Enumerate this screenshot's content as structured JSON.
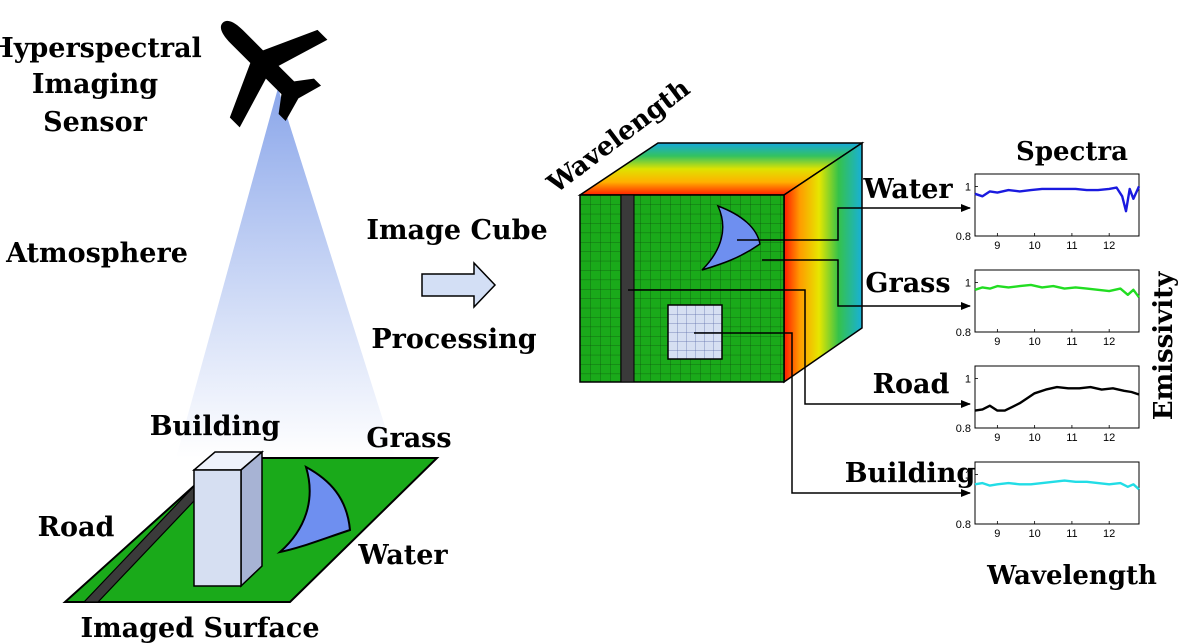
{
  "scene": {
    "sensor_label_lines": [
      "Hyperspectral",
      "Imaging",
      "Sensor"
    ],
    "atmosphere_label": "Atmosphere",
    "surface_label": "Imaged Surface",
    "building_label": "Building",
    "grass_label": "Grass",
    "road_label": "Road",
    "water_label": "Water"
  },
  "process": {
    "cube_label": "Image Cube",
    "processing_label": "Processing",
    "wavelength_axis_label": "Wavelength"
  },
  "spectra": {
    "title": "Spectra",
    "ylabel": "Emissivity",
    "xlabel": "Wavelength",
    "panel_labels": [
      "Water",
      "Grass",
      "Road",
      "Building"
    ]
  },
  "colors": {
    "grass": "#1aaa1a",
    "water": "#6e8ff0",
    "building": "#d6dff2",
    "road": "#3a3a3a",
    "beam": "#9fb6ee",
    "arrow_fill": "#d3dff5"
  },
  "chart_data": [
    {
      "type": "line",
      "title": "Water",
      "xlim": [
        8.4,
        12.8
      ],
      "ylim": [
        0.8,
        1.05
      ],
      "xticks": [
        9,
        10,
        11,
        12
      ],
      "yticks": [
        0.8,
        1
      ],
      "series": [
        {
          "name": "Water",
          "color": "#1a1adf",
          "x": [
            8.4,
            8.6,
            8.8,
            9.0,
            9.3,
            9.6,
            9.9,
            10.2,
            10.5,
            10.8,
            11.1,
            11.4,
            11.7,
            12.0,
            12.2,
            12.35,
            12.45,
            12.55,
            12.65,
            12.8
          ],
          "y": [
            0.97,
            0.96,
            0.98,
            0.975,
            0.985,
            0.98,
            0.985,
            0.99,
            0.99,
            0.99,
            0.99,
            0.985,
            0.985,
            0.99,
            0.995,
            0.96,
            0.9,
            0.99,
            0.95,
            1.0
          ]
        }
      ]
    },
    {
      "type": "line",
      "title": "Grass",
      "xlim": [
        8.4,
        12.8
      ],
      "ylim": [
        0.8,
        1.05
      ],
      "xticks": [
        9,
        10,
        11,
        12
      ],
      "yticks": [
        0.8,
        1
      ],
      "series": [
        {
          "name": "Grass",
          "color": "#22dd22",
          "x": [
            8.4,
            8.6,
            8.8,
            9.0,
            9.3,
            9.6,
            9.9,
            10.2,
            10.5,
            10.8,
            11.1,
            11.4,
            11.7,
            12.0,
            12.3,
            12.5,
            12.65,
            12.8
          ],
          "y": [
            0.97,
            0.98,
            0.975,
            0.985,
            0.98,
            0.985,
            0.99,
            0.98,
            0.985,
            0.975,
            0.98,
            0.975,
            0.97,
            0.965,
            0.975,
            0.95,
            0.97,
            0.94
          ]
        }
      ]
    },
    {
      "type": "line",
      "title": "Road",
      "xlim": [
        8.4,
        12.8
      ],
      "ylim": [
        0.8,
        1.05
      ],
      "xticks": [
        9,
        10,
        11,
        12
      ],
      "yticks": [
        0.8,
        1
      ],
      "series": [
        {
          "name": "Road",
          "color": "#000000",
          "x": [
            8.4,
            8.6,
            8.8,
            9.0,
            9.2,
            9.4,
            9.6,
            9.8,
            10.0,
            10.3,
            10.6,
            10.9,
            11.2,
            11.5,
            11.8,
            12.1,
            12.4,
            12.6,
            12.8
          ],
          "y": [
            0.87,
            0.875,
            0.89,
            0.87,
            0.87,
            0.885,
            0.9,
            0.92,
            0.94,
            0.955,
            0.965,
            0.96,
            0.96,
            0.965,
            0.955,
            0.96,
            0.95,
            0.945,
            0.935
          ]
        }
      ]
    },
    {
      "type": "line",
      "title": "Building",
      "xlim": [
        8.4,
        12.8
      ],
      "ylim": [
        0.8,
        1.05
      ],
      "xticks": [
        9,
        10,
        11,
        12
      ],
      "yticks": [
        0.8,
        1
      ],
      "series": [
        {
          "name": "Building",
          "color": "#22dde6",
          "x": [
            8.4,
            8.6,
            8.8,
            9.0,
            9.3,
            9.6,
            9.9,
            10.2,
            10.5,
            10.8,
            11.1,
            11.4,
            11.7,
            12.0,
            12.3,
            12.5,
            12.65,
            12.8
          ],
          "y": [
            0.96,
            0.965,
            0.955,
            0.96,
            0.965,
            0.96,
            0.96,
            0.965,
            0.97,
            0.975,
            0.97,
            0.97,
            0.965,
            0.96,
            0.965,
            0.95,
            0.96,
            0.94
          ]
        }
      ]
    }
  ]
}
